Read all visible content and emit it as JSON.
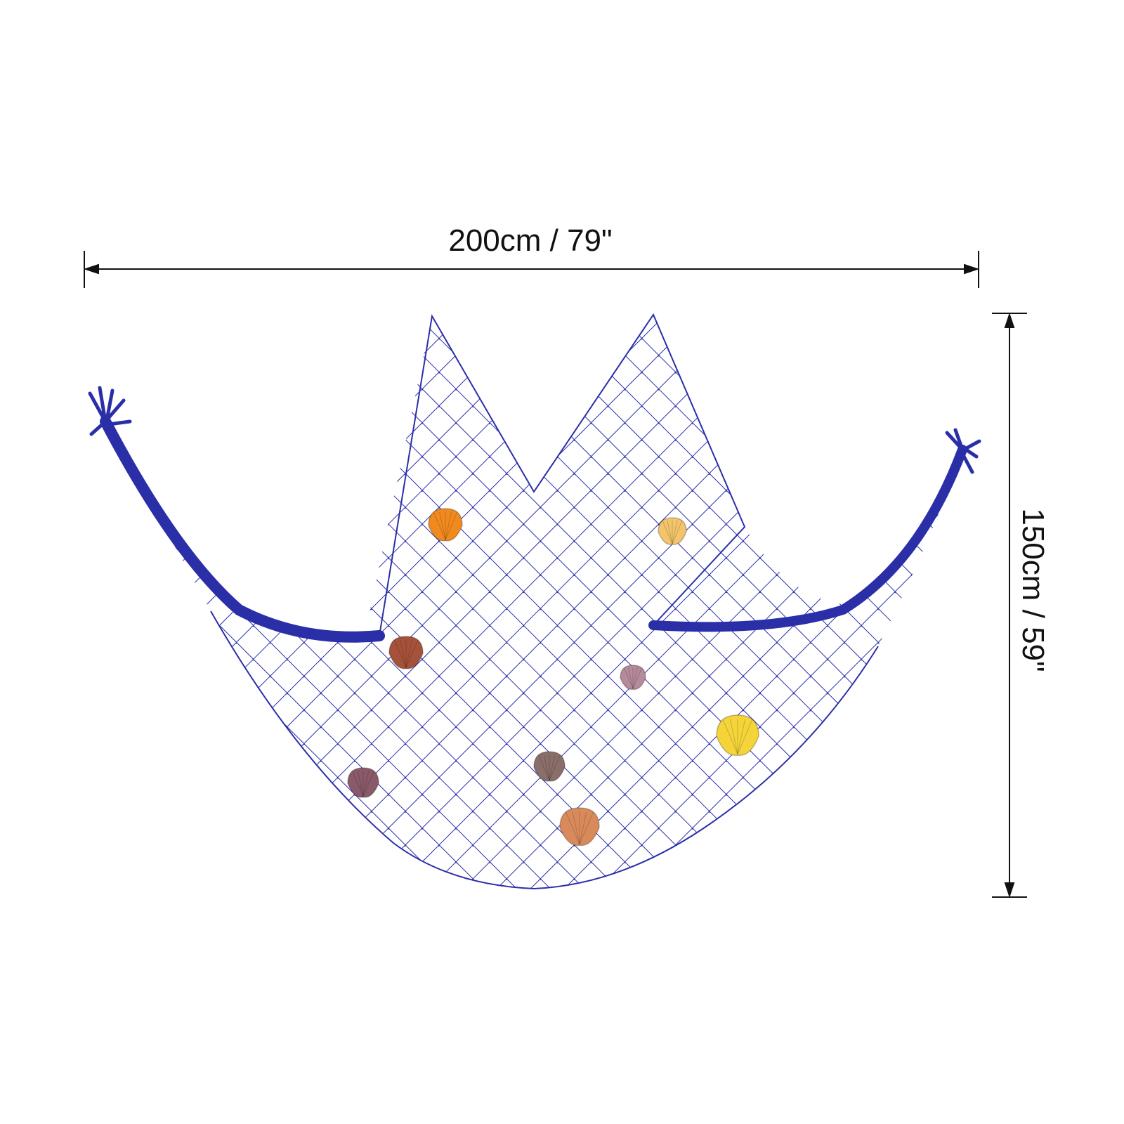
{
  "dimensions": {
    "width_label": "200cm / 79\"",
    "height_label": "150cm / 59\""
  },
  "product": {
    "net_color": "#2a2fa8",
    "shell_colors": [
      "#f08a1e",
      "#f3c46a",
      "#a6523a",
      "#b58a9a",
      "#f5d43a",
      "#8a5a6a",
      "#8a6e6a",
      "#d98a5a"
    ]
  }
}
